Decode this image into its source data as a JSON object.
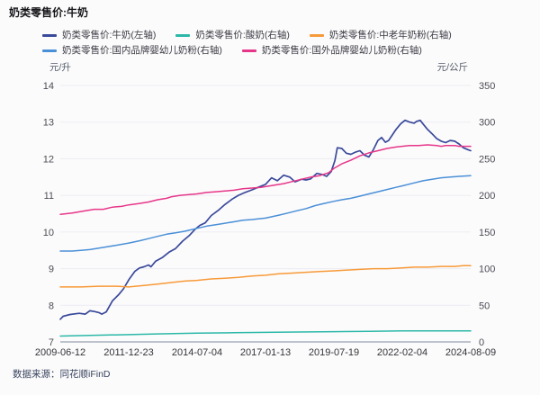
{
  "title": "奶类零售价:牛奶",
  "legend": {
    "items": [
      {
        "label": "奶类零售价:牛奶(左轴)",
        "color": "#3a4a9b"
      },
      {
        "label": "奶类零售价:酸奶(右轴)",
        "color": "#2bb8a8"
      },
      {
        "label": "奶类零售价:中老年奶粉(右轴)",
        "color": "#f79a38"
      },
      {
        "label": "奶类零售价:国内品牌婴幼儿奶粉(右轴)",
        "color": "#4a90d8"
      },
      {
        "label": "奶类零售价:国外品牌婴幼儿奶粉(右轴)",
        "color": "#e6368a"
      }
    ]
  },
  "footer": {
    "source": "数据来源：同花顺iFinD"
  },
  "colors": {
    "grid_line": "#ebebf3",
    "axis_line": "#aab0bd",
    "background": "#fcfbfb"
  },
  "chart_data": {
    "type": "line",
    "title": "奶类零售价:牛奶",
    "grid": true,
    "legend_position": "top",
    "x_axis": {
      "tick_labels": [
        "2009-06-12",
        "2011-12-23",
        "2014-07-04",
        "2017-01-13",
        "2019-07-19",
        "2022-02-04",
        "2024-08-09"
      ]
    },
    "y_left": {
      "label": "元/升",
      "min": 7,
      "max": 14,
      "ticks": [
        14,
        13,
        12,
        11,
        10,
        9,
        8,
        7
      ]
    },
    "y_right": {
      "label": "元/公斤",
      "min": 0,
      "max": 350,
      "ticks": [
        350,
        300,
        250,
        200,
        150,
        100,
        50,
        0
      ]
    },
    "series": [
      {
        "name": "奶类零售价:牛奶(左轴)",
        "axis": "left",
        "color": "#3a4a9b",
        "points": [
          [
            0.0,
            7.62
          ],
          [
            0.007,
            7.7
          ],
          [
            0.024,
            7.75
          ],
          [
            0.046,
            7.78
          ],
          [
            0.061,
            7.76
          ],
          [
            0.072,
            7.85
          ],
          [
            0.083,
            7.83
          ],
          [
            0.094,
            7.8
          ],
          [
            0.101,
            7.76
          ],
          [
            0.112,
            7.82
          ],
          [
            0.127,
            8.12
          ],
          [
            0.143,
            8.3
          ],
          [
            0.154,
            8.45
          ],
          [
            0.167,
            8.7
          ],
          [
            0.182,
            8.93
          ],
          [
            0.193,
            9.02
          ],
          [
            0.204,
            9.05
          ],
          [
            0.215,
            9.1
          ],
          [
            0.221,
            9.05
          ],
          [
            0.232,
            9.2
          ],
          [
            0.248,
            9.3
          ],
          [
            0.265,
            9.45
          ],
          [
            0.281,
            9.55
          ],
          [
            0.298,
            9.75
          ],
          [
            0.314,
            9.9
          ],
          [
            0.329,
            10.08
          ],
          [
            0.34,
            10.18
          ],
          [
            0.353,
            10.25
          ],
          [
            0.368,
            10.45
          ],
          [
            0.386,
            10.6
          ],
          [
            0.401,
            10.75
          ],
          [
            0.419,
            10.9
          ],
          [
            0.434,
            11.0
          ],
          [
            0.45,
            11.08
          ],
          [
            0.467,
            11.15
          ],
          [
            0.482,
            11.22
          ],
          [
            0.5,
            11.3
          ],
          [
            0.515,
            11.48
          ],
          [
            0.529,
            11.4
          ],
          [
            0.544,
            11.55
          ],
          [
            0.559,
            11.5
          ],
          [
            0.572,
            11.37
          ],
          [
            0.588,
            11.44
          ],
          [
            0.599,
            11.42
          ],
          [
            0.61,
            11.45
          ],
          [
            0.625,
            11.6
          ],
          [
            0.638,
            11.57
          ],
          [
            0.649,
            11.52
          ],
          [
            0.66,
            11.65
          ],
          [
            0.669,
            11.95
          ],
          [
            0.675,
            12.3
          ],
          [
            0.686,
            12.28
          ],
          [
            0.697,
            12.15
          ],
          [
            0.708,
            12.12
          ],
          [
            0.719,
            12.18
          ],
          [
            0.73,
            12.22
          ],
          [
            0.741,
            12.1
          ],
          [
            0.752,
            12.05
          ],
          [
            0.763,
            12.25
          ],
          [
            0.774,
            12.5
          ],
          [
            0.783,
            12.58
          ],
          [
            0.792,
            12.45
          ],
          [
            0.8,
            12.5
          ],
          [
            0.809,
            12.65
          ],
          [
            0.818,
            12.8
          ],
          [
            0.829,
            12.95
          ],
          [
            0.84,
            13.05
          ],
          [
            0.851,
            13.0
          ],
          [
            0.862,
            12.97
          ],
          [
            0.868,
            13.02
          ],
          [
            0.877,
            13.05
          ],
          [
            0.884,
            12.95
          ],
          [
            0.895,
            12.8
          ],
          [
            0.906,
            12.68
          ],
          [
            0.917,
            12.55
          ],
          [
            0.928,
            12.48
          ],
          [
            0.939,
            12.44
          ],
          [
            0.95,
            12.5
          ],
          [
            0.961,
            12.48
          ],
          [
            0.972,
            12.4
          ],
          [
            0.982,
            12.3
          ],
          [
            0.993,
            12.25
          ],
          [
            1.0,
            12.22
          ]
        ]
      },
      {
        "name": "奶类零售价:酸奶(右轴)",
        "axis": "right",
        "color": "#2bb8a8",
        "points": [
          [
            0.0,
            8
          ],
          [
            0.072,
            9
          ],
          [
            0.167,
            10
          ],
          [
            0.248,
            11
          ],
          [
            0.333,
            12
          ],
          [
            0.423,
            12.5
          ],
          [
            0.5,
            13
          ],
          [
            0.577,
            13.5
          ],
          [
            0.667,
            14
          ],
          [
            0.752,
            14.5
          ],
          [
            0.833,
            15
          ],
          [
            0.928,
            15
          ],
          [
            1.0,
            15
          ]
        ]
      },
      {
        "name": "奶类零售价:中老年奶粉(右轴)",
        "axis": "right",
        "color": "#f79a38",
        "points": [
          [
            0.0,
            75
          ],
          [
            0.05,
            75
          ],
          [
            0.094,
            76
          ],
          [
            0.138,
            76
          ],
          [
            0.167,
            75
          ],
          [
            0.204,
            77
          ],
          [
            0.237,
            79
          ],
          [
            0.27,
            81
          ],
          [
            0.303,
            83
          ],
          [
            0.333,
            84
          ],
          [
            0.368,
            86
          ],
          [
            0.401,
            87
          ],
          [
            0.434,
            88
          ],
          [
            0.467,
            90
          ],
          [
            0.5,
            91
          ],
          [
            0.533,
            93
          ],
          [
            0.566,
            94
          ],
          [
            0.599,
            95
          ],
          [
            0.632,
            96
          ],
          [
            0.667,
            97
          ],
          [
            0.697,
            98
          ],
          [
            0.73,
            99
          ],
          [
            0.763,
            100
          ],
          [
            0.796,
            100
          ],
          [
            0.833,
            101
          ],
          [
            0.862,
            102
          ],
          [
            0.895,
            102
          ],
          [
            0.928,
            103
          ],
          [
            0.961,
            103
          ],
          [
            0.982,
            104
          ],
          [
            1.0,
            104
          ]
        ]
      },
      {
        "name": "奶类零售价:国内品牌婴幼儿奶粉(右轴)",
        "axis": "right",
        "color": "#4a90d8",
        "points": [
          [
            0.0,
            124
          ],
          [
            0.029,
            124
          ],
          [
            0.05,
            125
          ],
          [
            0.072,
            126
          ],
          [
            0.094,
            128
          ],
          [
            0.116,
            130
          ],
          [
            0.138,
            132
          ],
          [
            0.167,
            135
          ],
          [
            0.193,
            138
          ],
          [
            0.215,
            141
          ],
          [
            0.237,
            144
          ],
          [
            0.259,
            147
          ],
          [
            0.281,
            149
          ],
          [
            0.303,
            151
          ],
          [
            0.333,
            155
          ],
          [
            0.357,
            158
          ],
          [
            0.379,
            160
          ],
          [
            0.401,
            162
          ],
          [
            0.423,
            164
          ],
          [
            0.445,
            166
          ],
          [
            0.467,
            167
          ],
          [
            0.5,
            169
          ],
          [
            0.533,
            173
          ],
          [
            0.555,
            176
          ],
          [
            0.577,
            179
          ],
          [
            0.599,
            182
          ],
          [
            0.621,
            186
          ],
          [
            0.643,
            189
          ],
          [
            0.667,
            192
          ],
          [
            0.686,
            194
          ],
          [
            0.708,
            196
          ],
          [
            0.73,
            199
          ],
          [
            0.752,
            202
          ],
          [
            0.774,
            205
          ],
          [
            0.796,
            208
          ],
          [
            0.818,
            211
          ],
          [
            0.833,
            213
          ],
          [
            0.862,
            217
          ],
          [
            0.884,
            220
          ],
          [
            0.906,
            222
          ],
          [
            0.928,
            224
          ],
          [
            0.95,
            225
          ],
          [
            0.972,
            226
          ],
          [
            1.0,
            227
          ]
        ]
      },
      {
        "name": "奶类零售价:国外品牌婴幼儿奶粉(右轴)",
        "axis": "right",
        "color": "#e6368a",
        "points": [
          [
            0.0,
            174
          ],
          [
            0.029,
            176
          ],
          [
            0.061,
            179
          ],
          [
            0.083,
            181
          ],
          [
            0.105,
            181
          ],
          [
            0.127,
            184
          ],
          [
            0.149,
            185
          ],
          [
            0.167,
            187
          ],
          [
            0.193,
            189
          ],
          [
            0.215,
            191
          ],
          [
            0.237,
            194
          ],
          [
            0.259,
            196
          ],
          [
            0.27,
            198
          ],
          [
            0.292,
            200
          ],
          [
            0.314,
            201
          ],
          [
            0.333,
            202
          ],
          [
            0.357,
            204
          ],
          [
            0.379,
            205
          ],
          [
            0.401,
            206
          ],
          [
            0.423,
            207
          ],
          [
            0.445,
            209
          ],
          [
            0.467,
            210
          ],
          [
            0.489,
            211
          ],
          [
            0.5,
            212
          ],
          [
            0.522,
            214
          ],
          [
            0.544,
            216
          ],
          [
            0.566,
            219
          ],
          [
            0.588,
            222
          ],
          [
            0.61,
            225
          ],
          [
            0.632,
            227
          ],
          [
            0.654,
            231
          ],
          [
            0.667,
            237
          ],
          [
            0.686,
            243
          ],
          [
            0.708,
            248
          ],
          [
            0.73,
            254
          ],
          [
            0.752,
            258
          ],
          [
            0.774,
            261
          ],
          [
            0.796,
            264
          ],
          [
            0.818,
            266
          ],
          [
            0.833,
            267
          ],
          [
            0.851,
            268
          ],
          [
            0.873,
            268
          ],
          [
            0.895,
            269
          ],
          [
            0.917,
            268
          ],
          [
            0.928,
            267
          ],
          [
            0.939,
            268
          ],
          [
            0.961,
            268
          ],
          [
            0.972,
            267
          ],
          [
            0.987,
            267
          ],
          [
            1.0,
            267
          ]
        ]
      }
    ]
  }
}
